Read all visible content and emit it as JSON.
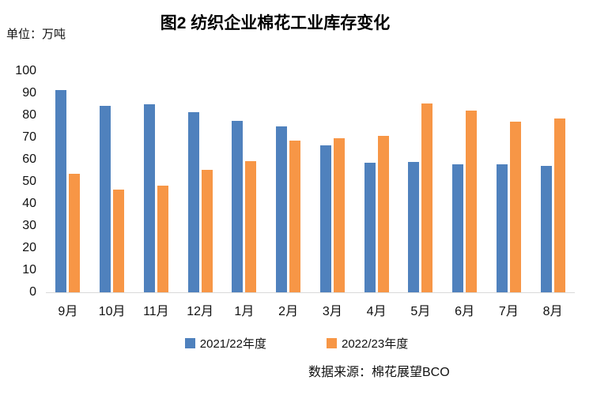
{
  "chart_data": {
    "type": "bar",
    "title": "图2 纺织企业棉花工业库存变化",
    "unit_label": "单位：万吨",
    "source": "数据来源：棉花展望BCO",
    "categories": [
      "9月",
      "10月",
      "11月",
      "12月",
      "1月",
      "2月",
      "3月",
      "4月",
      "5月",
      "6月",
      "7月",
      "8月"
    ],
    "series": [
      {
        "name": "2021/22年度",
        "color": "#4F81BD",
        "values": [
          91.4,
          84.3,
          85.0,
          81.3,
          77.6,
          75.1,
          66.5,
          58.7,
          59.0,
          57.9,
          57.9,
          57.3
        ]
      },
      {
        "name": "2022/23年度",
        "color": "#F79646",
        "values": [
          53.4,
          46.4,
          48.2,
          55.2,
          59.4,
          68.5,
          69.5,
          70.6,
          85.5,
          82.0,
          77.0,
          78.6
        ]
      }
    ],
    "ylim": [
      0,
      100
    ],
    "ytick_step": 10,
    "xlabel": "",
    "ylabel": "",
    "grid": false,
    "legend_position": "bottom",
    "axis_line_color": "#D9D9D9",
    "text_color": "#000000",
    "background_color": "#FFFFFF"
  }
}
